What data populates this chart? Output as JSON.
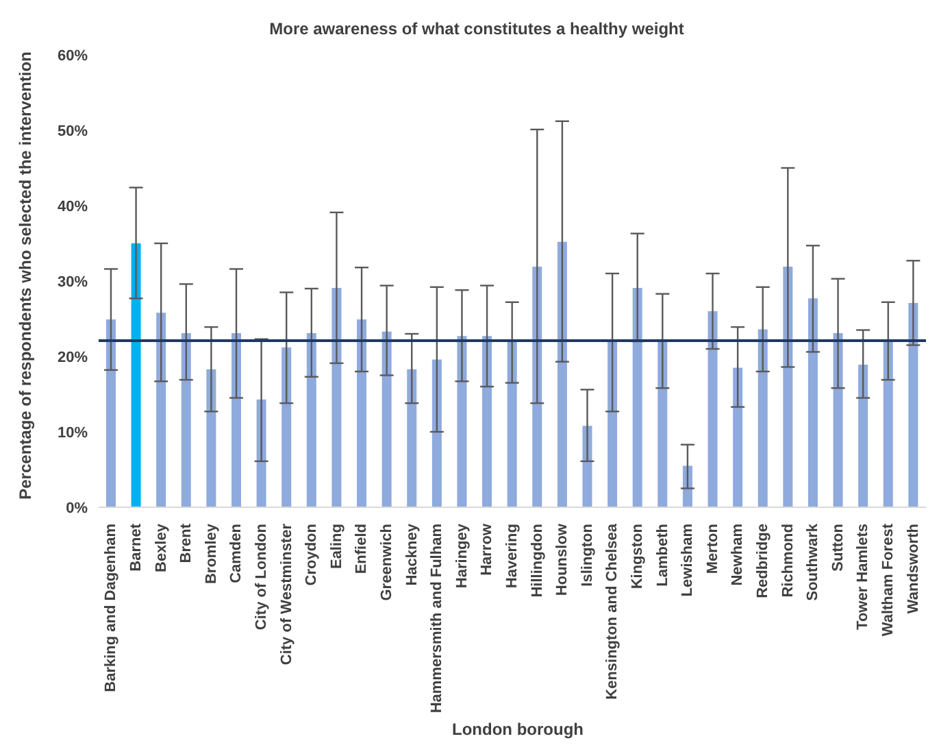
{
  "chart_data": {
    "type": "bar",
    "title": "More awareness of what constitutes a healthy weight",
    "xlabel": "London borough",
    "ylabel": "Percentage of respondents who selected the intervention",
    "categories": [
      "Barking and Dagenham",
      "Barnet",
      "Bexley",
      "Brent",
      "Bromley",
      "Camden",
      "City of London",
      "City of Westminster",
      "Croydon",
      "Ealing",
      "Enfield",
      "Greenwich",
      "Hackney",
      "Hammersmith and Fulham",
      "Haringey",
      "Harrow",
      "Havering",
      "Hillingdon",
      "Hounslow",
      "Islington",
      "Kensington and Chelsea",
      "Kingston",
      "Lambeth",
      "Lewisham",
      "Merton",
      "Newham",
      "Redbridge",
      "Richmond",
      "Southwark",
      "Sutton",
      "Tower Hamlets",
      "Waltham Forest",
      "Wandsworth"
    ],
    "values": [
      24.9,
      35.0,
      25.8,
      23.1,
      18.3,
      23.1,
      14.3,
      21.2,
      23.1,
      29.1,
      24.9,
      23.3,
      18.3,
      19.6,
      22.7,
      22.7,
      22.1,
      31.9,
      35.2,
      10.8,
      22.1,
      29.1,
      22.1,
      5.5,
      26.0,
      18.5,
      23.6,
      31.9,
      27.7,
      23.1,
      18.9,
      22.1,
      27.1
    ],
    "errors": [
      [
        18.2,
        31.6
      ],
      [
        27.7,
        42.4
      ],
      [
        16.7,
        35.0
      ],
      [
        16.9,
        29.6
      ],
      [
        12.7,
        23.9
      ],
      [
        14.5,
        31.6
      ],
      [
        6.1,
        22.3
      ],
      [
        13.8,
        28.5
      ],
      [
        17.3,
        29.0
      ],
      [
        19.1,
        39.1
      ],
      [
        18.0,
        31.8
      ],
      [
        17.5,
        29.4
      ],
      [
        13.8,
        23.0
      ],
      [
        10.0,
        29.2
      ],
      [
        16.7,
        28.8
      ],
      [
        16.0,
        29.4
      ],
      [
        16.5,
        27.2
      ],
      [
        13.8,
        50.1
      ],
      [
        19.3,
        51.2
      ],
      [
        6.1,
        15.6
      ],
      [
        12.7,
        31.0
      ],
      [
        22.0,
        36.3
      ],
      [
        15.8,
        28.3
      ],
      [
        2.5,
        8.3
      ],
      [
        21.0,
        31.0
      ],
      [
        13.3,
        23.9
      ],
      [
        18.0,
        29.2
      ],
      [
        18.6,
        45.0
      ],
      [
        20.6,
        34.7
      ],
      [
        15.8,
        30.3
      ],
      [
        14.5,
        23.5
      ],
      [
        16.9,
        27.2
      ],
      [
        21.5,
        32.7
      ]
    ],
    "colors": [
      "#8faadc",
      "#00b0f0",
      "#8faadc",
      "#8faadc",
      "#8faadc",
      "#8faadc",
      "#8faadc",
      "#8faadc",
      "#8faadc",
      "#8faadc",
      "#8faadc",
      "#8faadc",
      "#8faadc",
      "#8faadc",
      "#8faadc",
      "#8faadc",
      "#8faadc",
      "#8faadc",
      "#8faadc",
      "#8faadc",
      "#8faadc",
      "#8faadc",
      "#8faadc",
      "#8faadc",
      "#8faadc",
      "#8faadc",
      "#8faadc",
      "#8faadc",
      "#8faadc",
      "#8faadc",
      "#8faadc",
      "#8faadc",
      "#8faadc"
    ],
    "ylim": [
      0,
      60
    ],
    "yticks": [
      {
        "value": 0,
        "label": "0%"
      },
      {
        "value": 10,
        "label": "10%"
      },
      {
        "value": 20,
        "label": "20%"
      },
      {
        "value": 30,
        "label": "30%"
      },
      {
        "value": 40,
        "label": "40%"
      },
      {
        "value": 50,
        "label": "50%"
      },
      {
        "value": 60,
        "label": "60%"
      }
    ],
    "ref_lines": [
      {
        "axis": "y",
        "value": 22.1,
        "color": "#1f3864"
      }
    ],
    "grid": false,
    "legend": false
  }
}
